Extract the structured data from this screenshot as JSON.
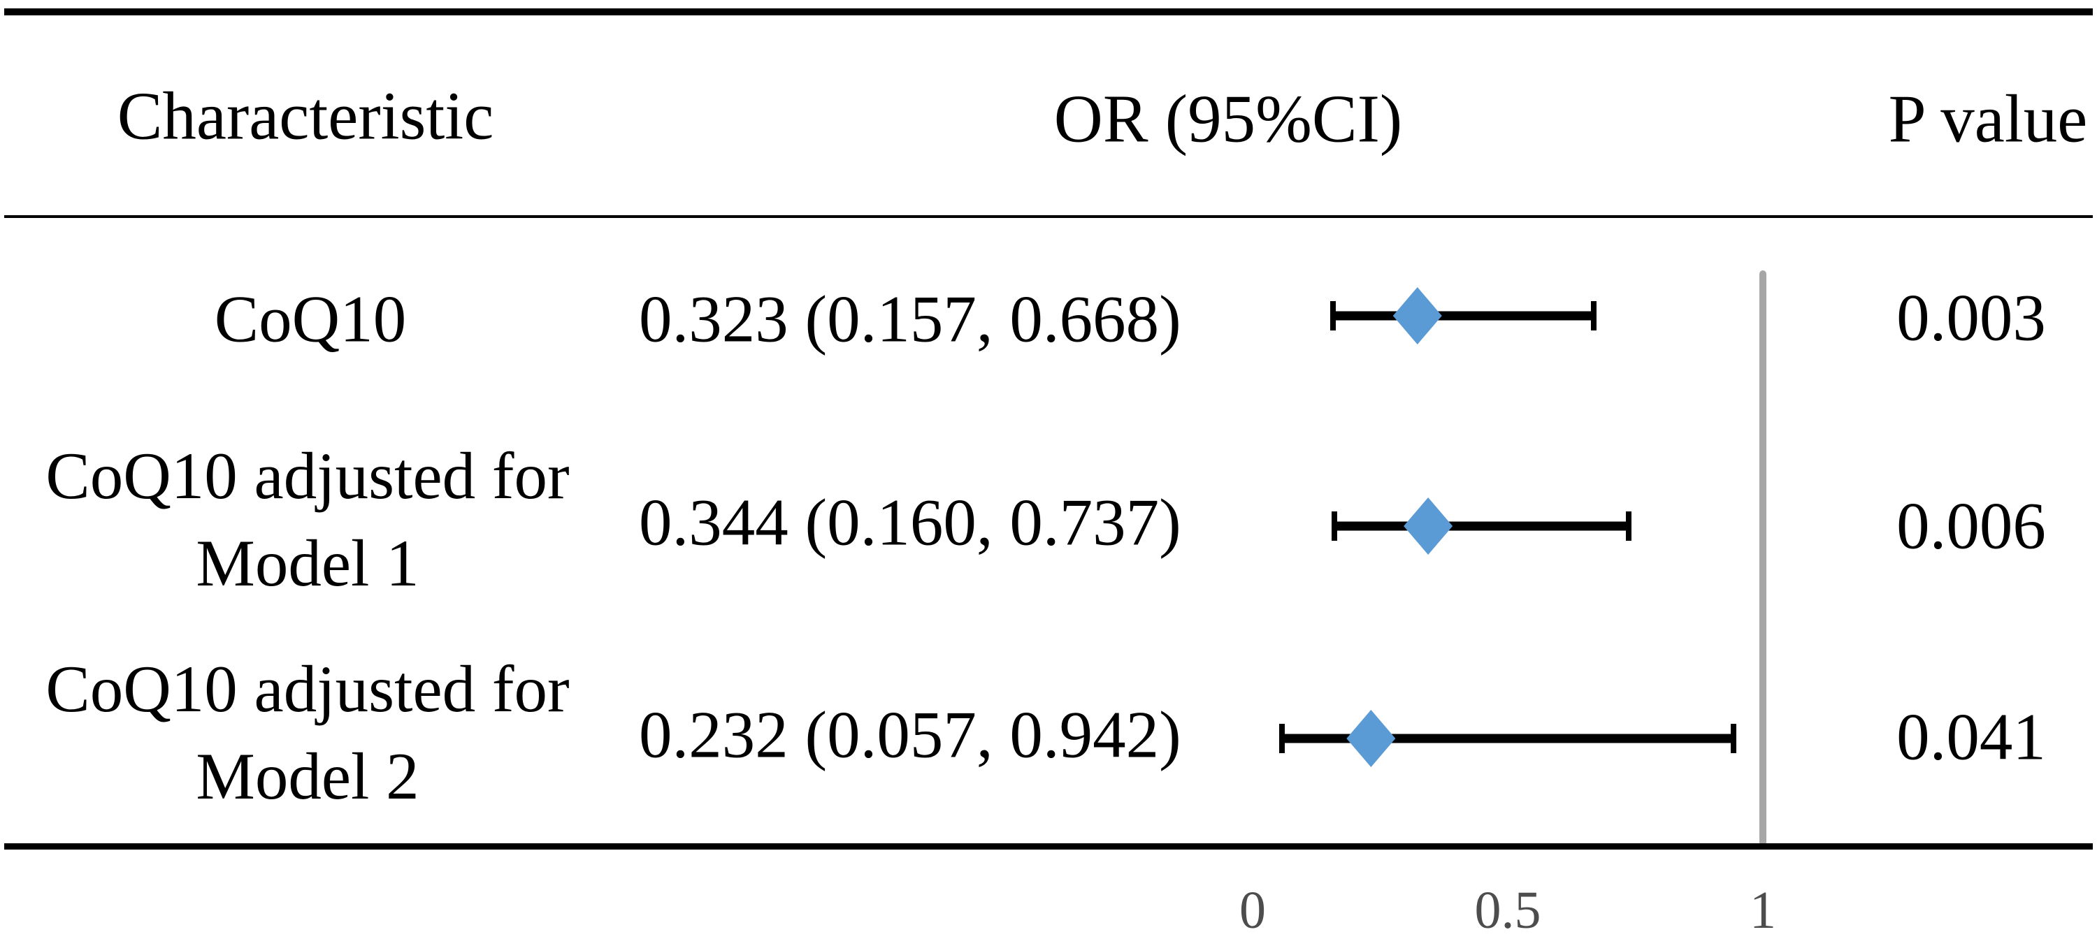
{
  "table": {
    "headers": {
      "characteristic": "Characteristic",
      "or_ci": "OR (95%CI)",
      "p_value": "P value"
    },
    "rows": [
      {
        "label_lines": [
          "CoQ10"
        ],
        "or_ci": "0.323 (0.157, 0.668)",
        "p_value": "0.003"
      },
      {
        "label_lines": [
          "CoQ10 adjusted for",
          "Model 1"
        ],
        "or_ci": "0.344 (0.160, 0.737)",
        "p_value": "0.006"
      },
      {
        "label_lines": [
          "CoQ10 adjusted for",
          "Model 2"
        ],
        "or_ci": "0.232 (0.057, 0.942)",
        "p_value": "0.041"
      }
    ]
  },
  "chart_data": {
    "type": "forest",
    "title": "",
    "xlabel": "",
    "x_ticks": [
      0,
      0.5,
      1
    ],
    "x_tick_labels": [
      "0",
      "0.5",
      "1"
    ],
    "x_range": [
      0,
      1.3
    ],
    "reference_line_x": 1,
    "rows": [
      {
        "label": "CoQ10",
        "or": 0.323,
        "ci_low": 0.157,
        "ci_high": 0.668,
        "p_value": 0.003
      },
      {
        "label": "CoQ10 adjusted for Model 1",
        "or": 0.344,
        "ci_low": 0.16,
        "ci_high": 0.737,
        "p_value": 0.006
      },
      {
        "label": "CoQ10 adjusted for Model 2",
        "or": 0.232,
        "ci_low": 0.057,
        "ci_high": 0.942,
        "p_value": 0.041
      }
    ],
    "marker": {
      "shape": "diamond",
      "color": "#5B9BD5"
    },
    "error_bar_color": "#000000",
    "reference_line_color": "#A6A6A6",
    "axis_text_color": "#4D4D4D",
    "grid": false,
    "legend": false
  }
}
